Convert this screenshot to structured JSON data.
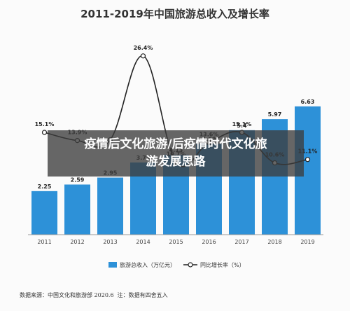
{
  "overlay": {
    "line1": "疫情后文化旅游/后疫情时代文化旅",
    "line2": "游发展思路"
  },
  "source": {
    "label": "数据来源：",
    "org": "中国文化和旅游部",
    "date": "2020.6",
    "compiled_label": "注：",
    "compiled": "数据有四舍五入"
  },
  "chart_data": {
    "type": "bar+line",
    "title": "2011-2019年中国旅游总收入及增长率",
    "categories": [
      "2011",
      "2012",
      "2013",
      "2014",
      "2015",
      "2016",
      "2017",
      "2018",
      "2019"
    ],
    "series": [
      {
        "name": "旅游总收入（万亿元）",
        "type": "bar",
        "color": "#2d91d8",
        "values": [
          2.25,
          2.59,
          2.95,
          3.73,
          4.13,
          4.69,
          5.4,
          5.97,
          6.63
        ]
      },
      {
        "name": "同比增长率（%）",
        "type": "line",
        "color": "#222222",
        "values": [
          15.1,
          13.9,
          14.0,
          26.4,
          10.7,
          13.6,
          15.1,
          10.6,
          11.1
        ],
        "labels": [
          "15.1%",
          "13.9%",
          "",
          "26.4%",
          "10.7%",
          "13.6%",
          "15.1%",
          "10.6%",
          "11.1%"
        ]
      }
    ],
    "bar_labels": [
      "2.25",
      "2.59",
      "2.95",
      "3.73",
      "4.13",
      "4.69",
      "5.4",
      "5.97",
      "6.63"
    ],
    "bar_ylim": [
      0,
      10.5
    ],
    "line_ylim": [
      0,
      30
    ],
    "grid": false,
    "legend_position": "bottom"
  }
}
